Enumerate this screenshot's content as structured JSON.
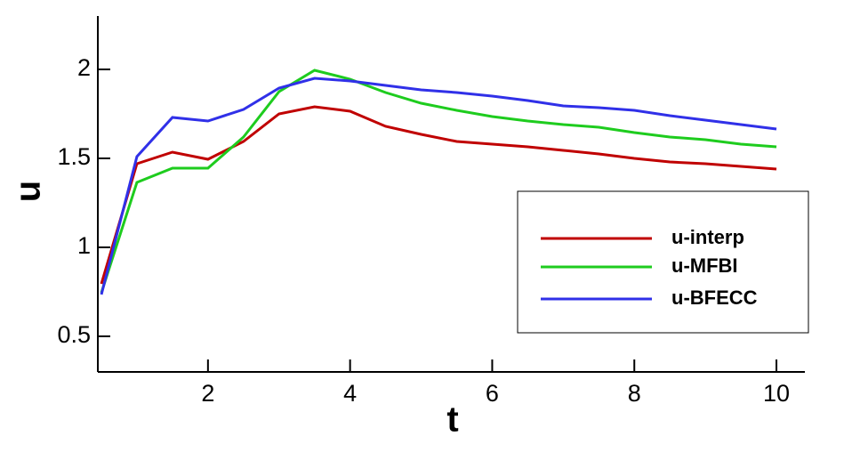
{
  "chart_data": {
    "type": "line",
    "x_label": "t",
    "y_label": "u",
    "x": [
      0.5,
      1,
      1.5,
      2,
      2.5,
      3,
      3.5,
      4,
      4.5,
      5,
      5.5,
      6,
      6.5,
      7,
      7.5,
      8,
      8.5,
      9,
      9.5,
      10
    ],
    "series": [
      {
        "name": "u-interp",
        "color": "#c00000",
        "values": [
          0.795,
          1.47,
          1.535,
          1.495,
          1.595,
          1.75,
          1.79,
          1.765,
          1.68,
          1.635,
          1.595,
          1.58,
          1.565,
          1.545,
          1.525,
          1.5,
          1.48,
          1.47,
          1.455,
          1.44
        ]
      },
      {
        "name": "u-MFBI",
        "color": "#1ecc1e",
        "values": [
          0.745,
          1.365,
          1.445,
          1.445,
          1.62,
          1.875,
          1.995,
          1.945,
          1.87,
          1.81,
          1.77,
          1.735,
          1.71,
          1.69,
          1.675,
          1.645,
          1.62,
          1.605,
          1.58,
          1.565
        ]
      },
      {
        "name": "u-BFECC",
        "color": "#3030e8",
        "values": [
          0.735,
          1.51,
          1.73,
          1.71,
          1.775,
          1.895,
          1.95,
          1.935,
          1.91,
          1.885,
          1.87,
          1.85,
          1.825,
          1.795,
          1.785,
          1.77,
          1.74,
          1.715,
          1.69,
          1.665
        ]
      }
    ],
    "xlim": [
      0.45,
      10.4
    ],
    "xticks": [
      2,
      4,
      6,
      8,
      10
    ],
    "ylim": [
      0.3,
      2.3
    ],
    "yticks": [
      0.5,
      1,
      1.5,
      2
    ],
    "legend": "lower right"
  }
}
